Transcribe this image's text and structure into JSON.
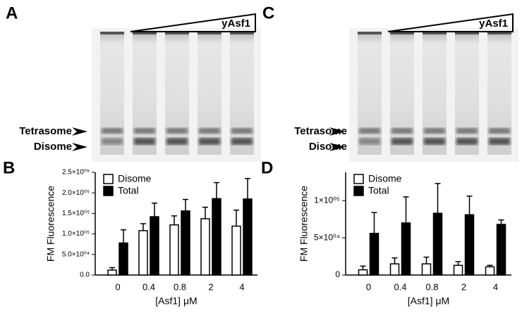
{
  "gel_a": {
    "letter": "A",
    "titration": "yAsf1",
    "bands": [
      "Tetrasome",
      "Disome"
    ]
  },
  "gel_c": {
    "letter": "C",
    "titration": "yAsf1",
    "bands": [
      "Tetrasome",
      "Disome"
    ]
  },
  "chart_data": [
    {
      "type": "bar",
      "panel_label": "B",
      "y_label": "FM Fluorescence",
      "x_label": "[Asf1] μM",
      "categories": [
        "0",
        "0.4",
        "0.8",
        "2",
        "4"
      ],
      "series": [
        {
          "name": "Disome",
          "color": "#ffffff",
          "values": [
            12000,
            108000,
            122000,
            137000,
            119000
          ],
          "errors": [
            6000,
            17000,
            22000,
            28000,
            39000
          ]
        },
        {
          "name": "Total",
          "color": "#000000",
          "values": [
            78000,
            142000,
            156000,
            186000,
            185000
          ],
          "errors": [
            32000,
            33000,
            28000,
            39000,
            50000
          ]
        }
      ],
      "ylim": [
        0,
        250000
      ],
      "yticks": [
        {
          "value": 0,
          "label": "0.0"
        },
        {
          "value": 50000,
          "label": "5.0×10⁰⁴"
        },
        {
          "value": 100000,
          "label": "1.0×10⁰⁵"
        },
        {
          "value": 150000,
          "label": "1.5×10⁰⁵"
        },
        {
          "value": 200000,
          "label": "2.0×10⁰⁵"
        },
        {
          "value": 250000,
          "label": "2.5×10⁰⁵"
        }
      ],
      "legend": "upper left"
    },
    {
      "type": "bar",
      "panel_label": "D",
      "y_label": "FM Fluorescence",
      "x_label": "[Asf1] μM",
      "categories": [
        "0",
        "0.4",
        "0.8",
        "2",
        "4"
      ],
      "series": [
        {
          "name": "Disome",
          "color": "#ffffff",
          "values": [
            7000,
            15000,
            15000,
            13000,
            11000
          ],
          "errors": [
            5000,
            8000,
            9000,
            5000,
            2000
          ]
        },
        {
          "name": "Total",
          "color": "#000000",
          "values": [
            56000,
            70000,
            83000,
            81000,
            68000
          ],
          "errors": [
            28000,
            35000,
            40000,
            25000,
            6000
          ]
        }
      ],
      "ylim": [
        0,
        138000
      ],
      "yticks": [
        0,
        {
          "value": 50000,
          "label": "5×10⁰⁴"
        },
        {
          "value": 100000,
          "label": "1×10⁰⁵"
        }
      ],
      "legend": "upper left"
    }
  ]
}
